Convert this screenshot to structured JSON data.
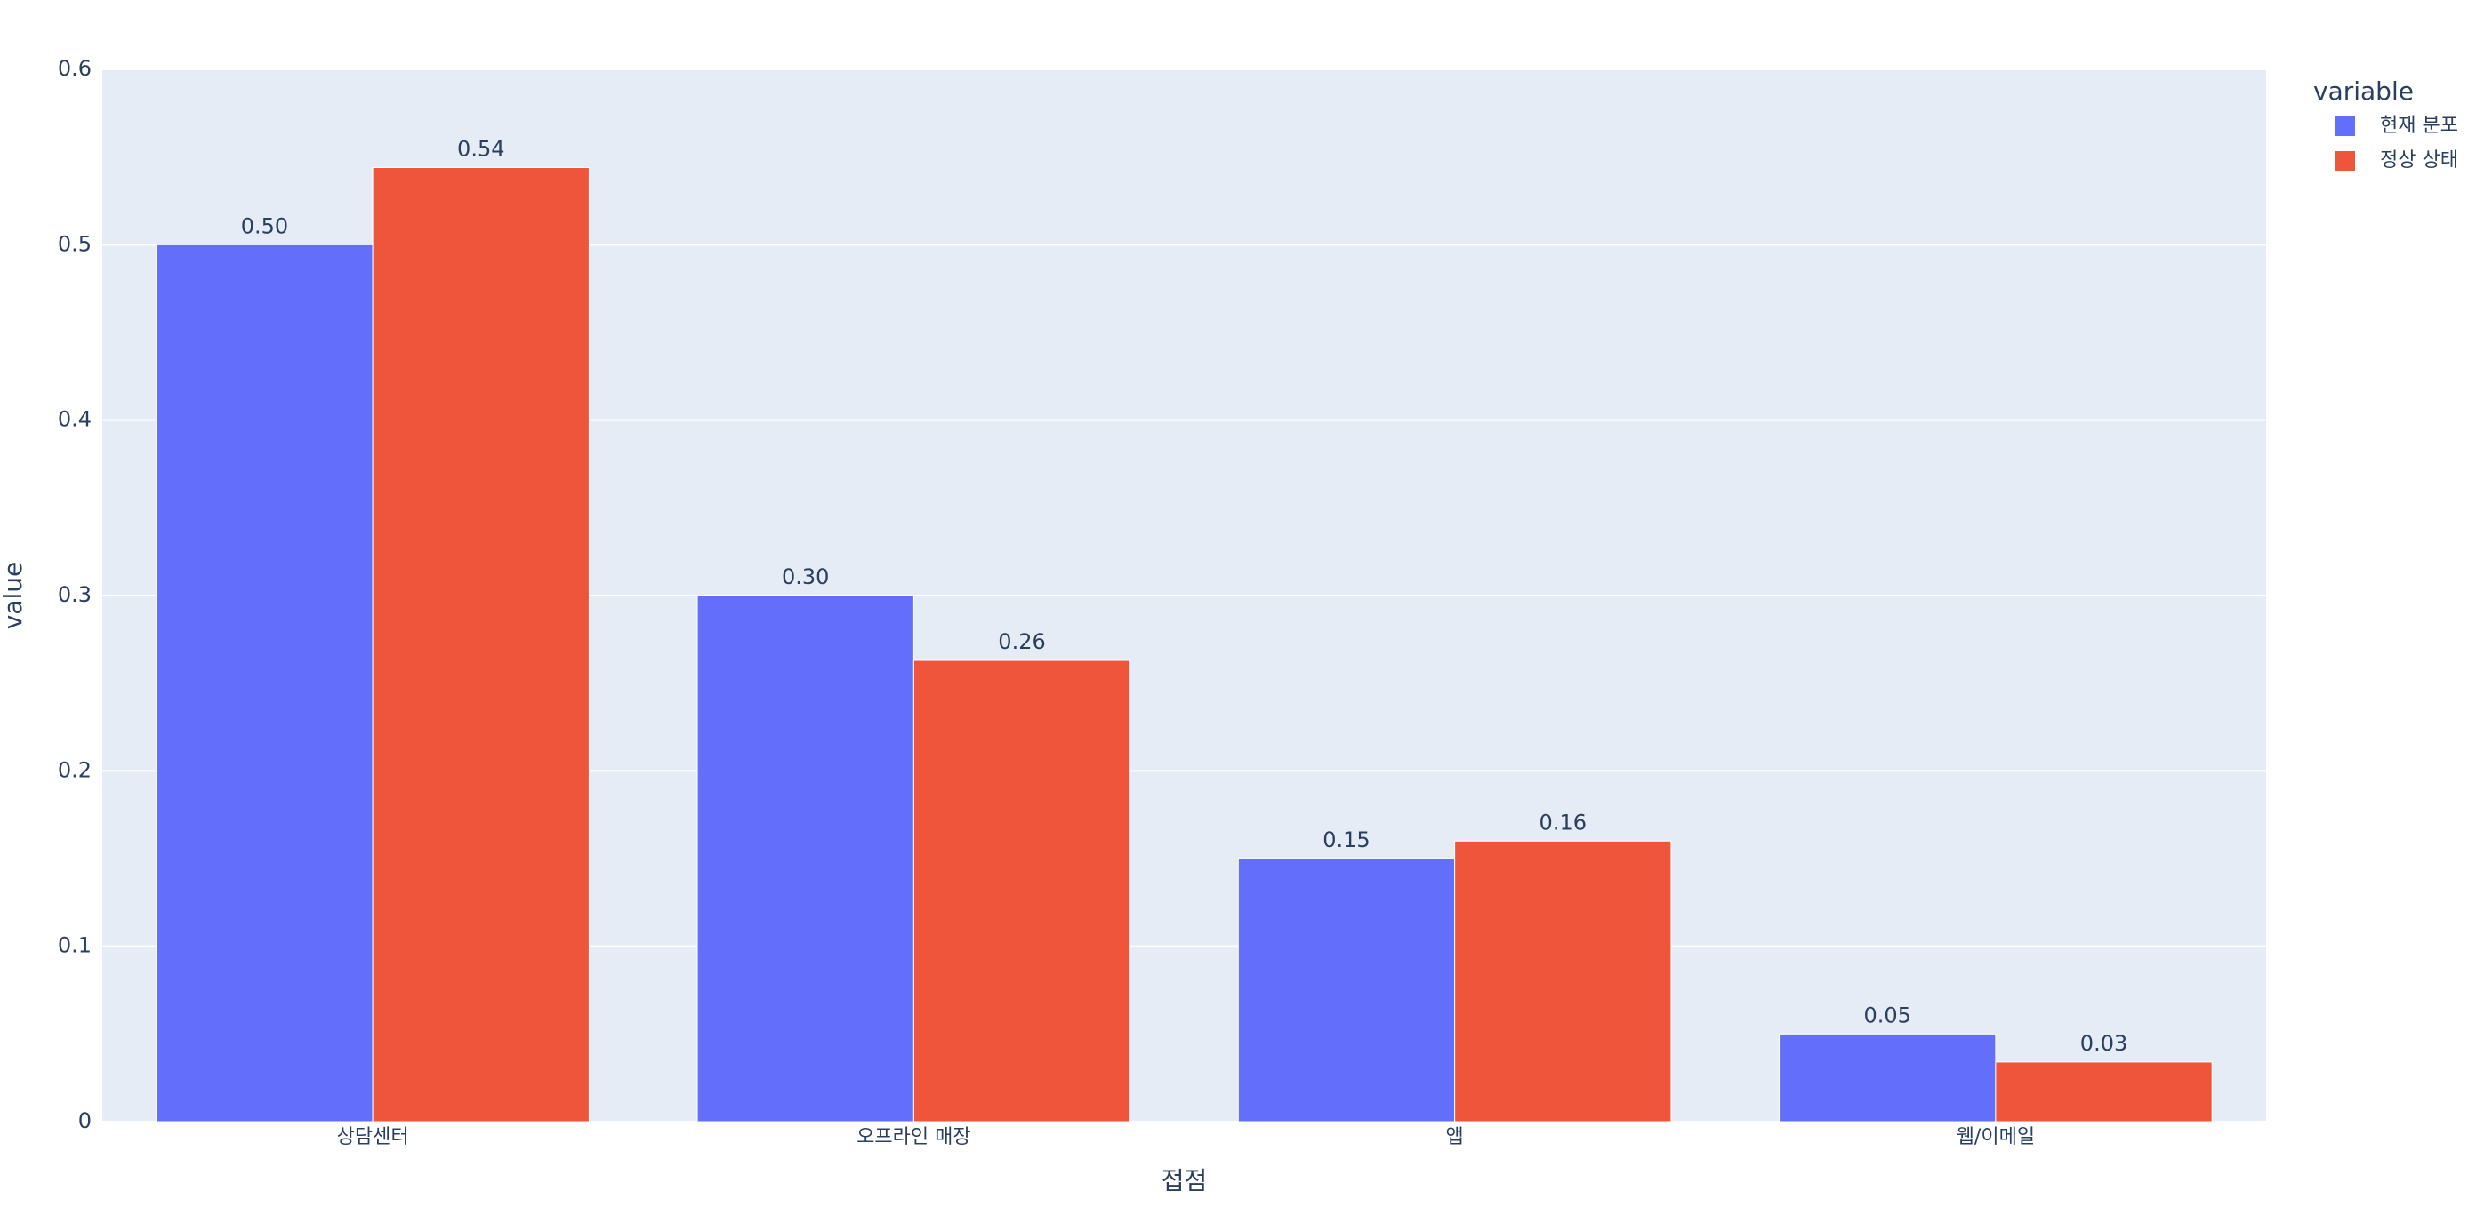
{
  "chart_data": {
    "type": "bar",
    "x_label": "접점",
    "y_label": "value",
    "legend_title": "variable",
    "categories": [
      "상담센터",
      "오프라인 매장",
      "앱",
      "웹/이메일"
    ],
    "series": [
      {
        "name": "현재 분포",
        "color": "#636efa",
        "values": [
          0.5,
          0.3,
          0.15,
          0.05
        ],
        "value_labels": [
          "0.50",
          "0.30",
          "0.15",
          "0.05"
        ]
      },
      {
        "name": "정상 상태",
        "color": "#ef553b",
        "values": [
          0.544,
          0.263,
          0.16,
          0.034
        ],
        "value_labels": [
          "0.54",
          "0.26",
          "0.16",
          "0.03"
        ]
      }
    ],
    "ylim": [
      0,
      0.6
    ],
    "yticks": [
      0,
      0.1,
      0.2,
      0.3,
      0.4,
      0.5,
      0.6
    ],
    "grid": true,
    "legend": "right"
  }
}
